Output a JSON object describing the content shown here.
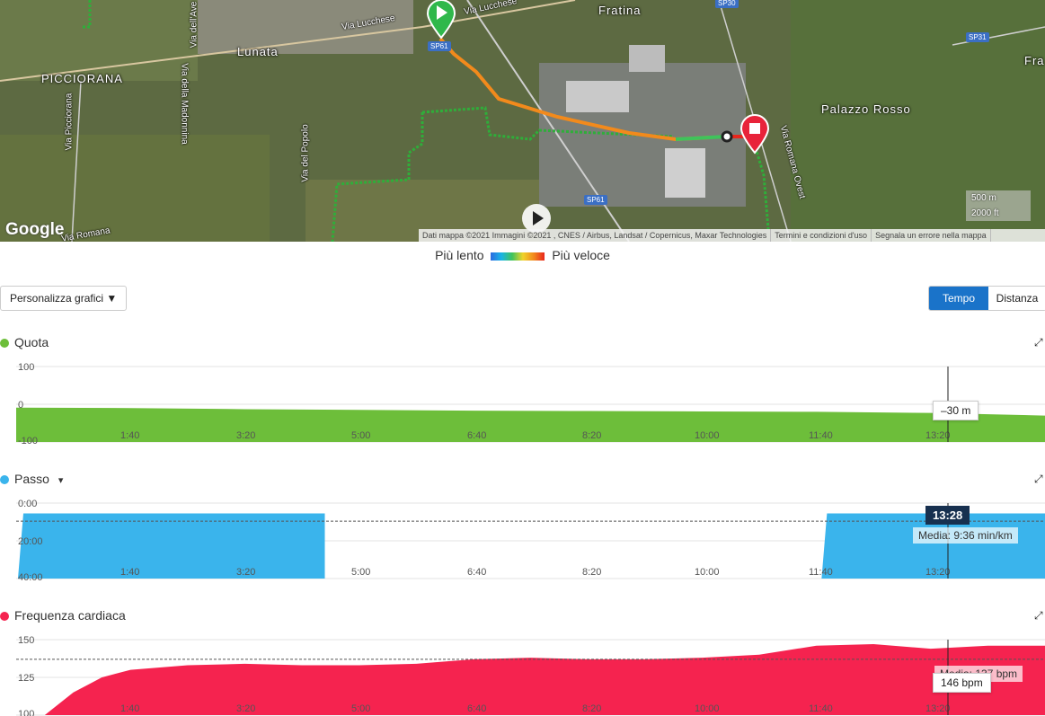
{
  "map": {
    "places": [
      "PICCIORANA",
      "Lunata",
      "Fratina",
      "Palazzo Rosso",
      "Fra"
    ],
    "roads": [
      "Via Lucchese",
      "Via Lucchese",
      "Via dell'Ave",
      "Via della Madonnina",
      "Via Picciorana",
      "Via del Popolo",
      "Via Romana Ovest",
      "Via Romana"
    ],
    "shields": [
      "SP30",
      "SP31",
      "SP61",
      "SP61"
    ],
    "google": "Google",
    "attribution": [
      "Dati mappa ©2021 Immagini ©2021 , CNES / Airbus, Landsat / Copernicus, Maxar Technologies",
      "Termini e condizioni d'uso",
      "Segnala un errore nella mappa"
    ],
    "scale": [
      "500 m",
      "2000 ft"
    ],
    "colors": {
      "start": "#2fb84b",
      "end": "#e8233a",
      "route": "#f28a1c"
    }
  },
  "legend": {
    "slow": "Più lento",
    "fast": "Più veloce"
  },
  "controls": {
    "customize": "Personalizza grafici ▼",
    "time": "Tempo",
    "distance": "Distanza"
  },
  "charts": {
    "elevation": {
      "title": "Quota",
      "color": "#6dbe3a",
      "tooltip": "–30 m"
    },
    "pace": {
      "title": "Passo",
      "arrow": "▾",
      "color": "#3ab4ec",
      "time": "13:28",
      "avg": "Media: 9:36 min/km"
    },
    "hr": {
      "title": "Frequenza cardiaca",
      "color": "#f5234f",
      "avg": "Media: 137 bpm",
      "tooltip": "146 bpm"
    }
  },
  "chart_data": [
    {
      "type": "area",
      "title": "Quota",
      "ylim": [
        -100,
        100
      ],
      "yticks": [
        "100",
        "0",
        "-100"
      ],
      "xticks": [
        "1:40",
        "3:20",
        "5:00",
        "6:40",
        "8:20",
        "10:00",
        "11:40",
        "13:20"
      ],
      "x": [
        0,
        100,
        200,
        300,
        400,
        500,
        600,
        700,
        800,
        900
      ],
      "y": [
        -9,
        -10,
        -13,
        -15,
        -17,
        -18,
        -19,
        -20,
        -23,
        -30
      ]
    },
    {
      "type": "area",
      "title": "Passo",
      "ylim": [
        0,
        40
      ],
      "yticks": [
        "0:00",
        "20:00",
        "40:00"
      ],
      "xticks": [
        "1:40",
        "3:20",
        "5:00",
        "6:40",
        "8:20",
        "10:00",
        "11:40",
        "13:20"
      ],
      "segments": [
        {
          "from": 0,
          "to": 270,
          "pace": 5.5
        },
        {
          "from": 703,
          "to": 900,
          "pace": 5.5
        }
      ],
      "average": 9.6
    },
    {
      "type": "area",
      "title": "Frequenza cardiaca",
      "ylim": [
        100,
        150
      ],
      "yticks": [
        "150",
        "125",
        "100"
      ],
      "xticks": [
        "1:40",
        "3:20",
        "5:00",
        "6:40",
        "8:20",
        "10:00",
        "11:40",
        "13:20"
      ],
      "x": [
        25,
        50,
        75,
        100,
        150,
        200,
        250,
        300,
        350,
        400,
        450,
        500,
        550,
        600,
        650,
        700,
        750,
        800,
        850,
        900
      ],
      "y": [
        100,
        115,
        125,
        130,
        133,
        134,
        133,
        133,
        134,
        137,
        138,
        137,
        137,
        138,
        140,
        146,
        147,
        144,
        146,
        146
      ],
      "average": 137
    }
  ]
}
